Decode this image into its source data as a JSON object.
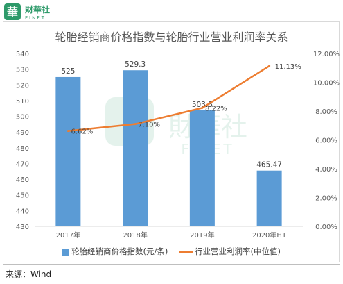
{
  "logo": {
    "glyph": "華",
    "cn": "財華社",
    "en": "FINET"
  },
  "watermark": {
    "cn": "財華社",
    "en": "FINET"
  },
  "colors": {
    "bar": "#5b9bd5",
    "line": "#ed7d31",
    "brand": "#2e9a6a"
  },
  "chart_data": {
    "type": "bar",
    "title": "轮胎经销商价格指数与轮胎行业营业利润率关系",
    "categories": [
      "2017年",
      "2018年",
      "2019年",
      "2020年H1"
    ],
    "series": [
      {
        "name": "轮胎经销商价格指数(元/条)",
        "type": "bar",
        "axis": "left",
        "values": [
          525,
          529.3,
          503.8,
          465.47
        ],
        "data_labels": [
          "525",
          "529.3",
          "503.8",
          "465.47"
        ]
      },
      {
        "name": "行业营业利润率(中位值)",
        "type": "line",
        "axis": "right",
        "values": [
          6.62,
          7.1,
          8.22,
          11.13
        ],
        "data_labels": [
          "6.62%",
          "7.10%",
          "8.22%",
          "11.13%"
        ]
      }
    ],
    "y_left": {
      "min": 430,
      "max": 540,
      "step": 10,
      "ticks": [
        "430",
        "440",
        "450",
        "460",
        "470",
        "480",
        "490",
        "500",
        "510",
        "520",
        "530",
        "540"
      ]
    },
    "y_right": {
      "min": 0,
      "max": 12,
      "step": 2,
      "ticks": [
        "0.00%",
        "2.00%",
        "4.00%",
        "6.00%",
        "8.00%",
        "10.00%",
        "12.00%"
      ]
    },
    "legend_position": "bottom",
    "grid": false
  },
  "source": "来源：Wind"
}
